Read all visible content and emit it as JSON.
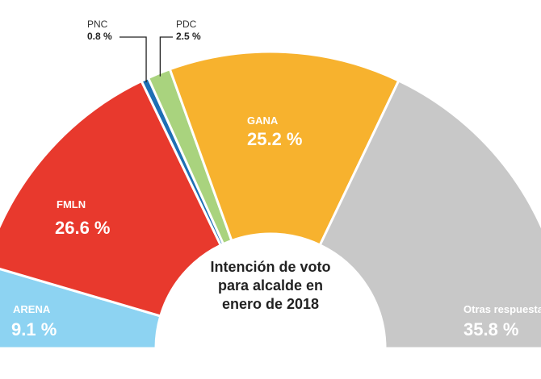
{
  "chart_data": {
    "type": "pie",
    "subtype": "half-donut",
    "title_lines": [
      "Intención de voto",
      "para alcalde en",
      "enero de 2018"
    ],
    "slices": [
      {
        "label": "ARENA",
        "value": 9.1,
        "value_label": "9.1 %",
        "color": "#8dd3f2",
        "label_style": "inside"
      },
      {
        "label": "FMLN",
        "value": 26.6,
        "value_label": "26.6 %",
        "color": "#e8392d",
        "label_style": "inside"
      },
      {
        "label": "PNC",
        "value": 0.8,
        "value_label": "0.8 %",
        "color": "#1e6fb4",
        "label_style": "callout"
      },
      {
        "label": "PDC",
        "value": 2.5,
        "value_label": "2.5 %",
        "color": "#a9d37e",
        "label_style": "callout"
      },
      {
        "label": "GANA",
        "value": 25.2,
        "value_label": "25.2 %",
        "color": "#f7b22e",
        "label_style": "inside"
      },
      {
        "label": "Otras respuestas",
        "value": 35.8,
        "value_label": "35.8 %",
        "color": "#c8c8c8",
        "label_style": "inside"
      }
    ]
  }
}
